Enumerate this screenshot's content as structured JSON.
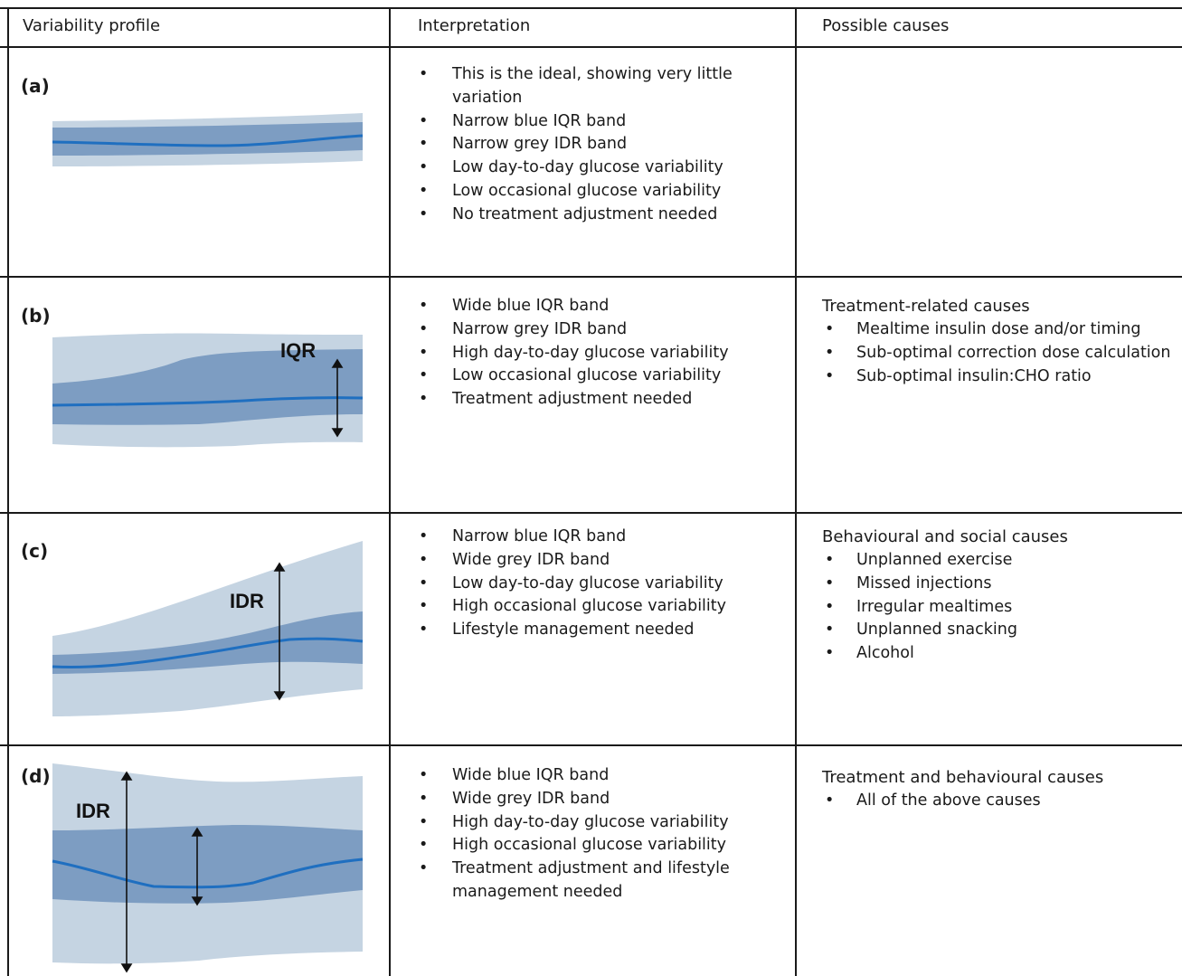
{
  "headers": {
    "profile": "Variability profile",
    "interpretation": "Interpretation",
    "causes": "Possible causes"
  },
  "rows": [
    {
      "label": "(a)",
      "interpretation": [
        "This is the ideal, showing very little variation",
        "Narrow blue IQR band",
        "Narrow grey IDR band",
        "Low day-to-day glucose variability",
        "Low occasional glucose variability",
        "No treatment adjustment needed"
      ],
      "causes_title": "",
      "causes": []
    },
    {
      "label": "(b)",
      "chart_labels": [
        "IQR"
      ],
      "interpretation": [
        "Wide blue IQR band",
        "Narrow grey IDR band",
        "High day-to-day glucose variability",
        "Low occasional glucose variability",
        "Treatment adjustment needed"
      ],
      "causes_title": "Treatment-related causes",
      "causes": [
        "Mealtime insulin dose and/or timing",
        "Sub-optimal correction dose calculation",
        "Sub-optimal insulin:CHO ratio"
      ]
    },
    {
      "label": "(c)",
      "chart_labels": [
        "IDR"
      ],
      "interpretation": [
        "Narrow blue IQR band",
        "Wide grey IDR band",
        "Low day-to-day glucose variability",
        "High occasional glucose variability",
        "Lifestyle management needed"
      ],
      "causes_title": "Behavioural and social causes",
      "causes": [
        "Unplanned exercise",
        "Missed injections",
        "Irregular mealtimes",
        "Unplanned snacking",
        "Alcohol"
      ]
    },
    {
      "label": "(d)",
      "chart_labels": [
        "IDR"
      ],
      "interpretation": [
        "Wide blue IQR band",
        "Wide grey IDR band",
        "High day-to-day glucose variability",
        "High occasional glucose variability",
        "Treatment adjustment and lifestyle management needed"
      ],
      "causes_title": "Treatment and behavioural causes",
      "causes": [
        "All of the above causes"
      ]
    }
  ],
  "colors": {
    "idr_band": "#c5d4e2",
    "iqr_band": "#7d9dc2",
    "median_line": "#1f6fc0",
    "rule": "#1a1a1a"
  }
}
